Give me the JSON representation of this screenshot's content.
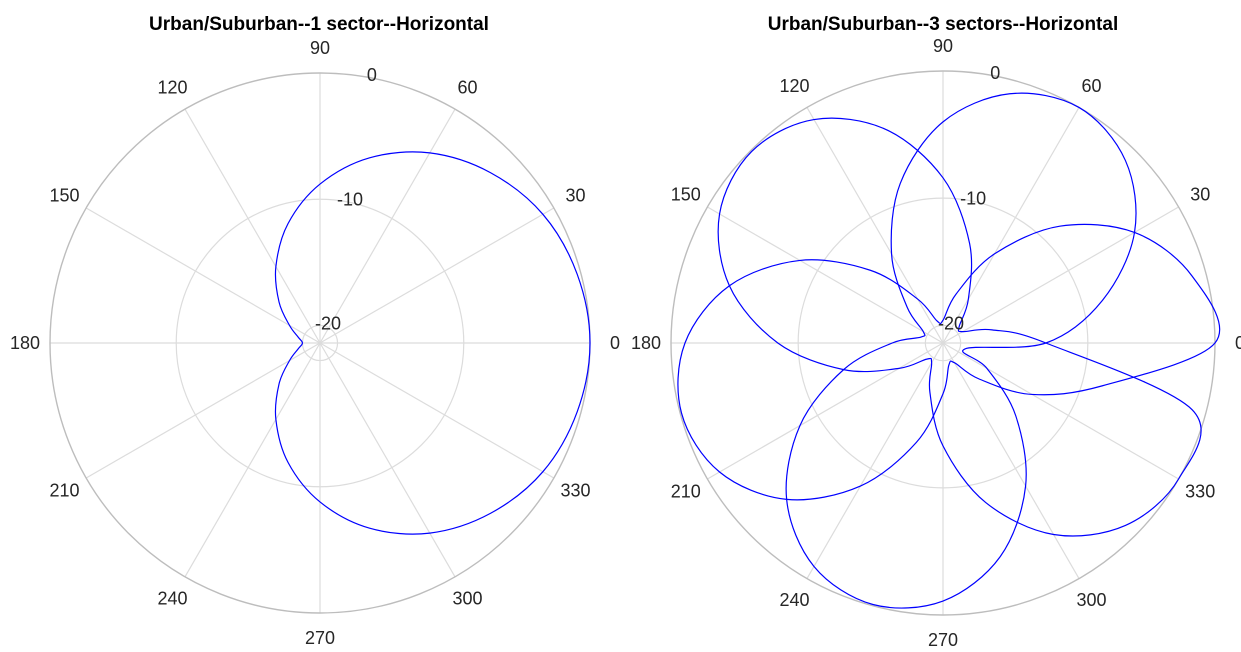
{
  "chart_data": [
    {
      "type": "polar-line",
      "title": "Urban/Suburban--1 sector--Horizontal",
      "theta_ticks": [
        "0",
        "30",
        "60",
        "90",
        "120",
        "150",
        "180",
        "210",
        "240",
        "270",
        "300",
        "330"
      ],
      "r_ticks": [
        "-20",
        "-10",
        "0"
      ],
      "rlim": [
        -20,
        0
      ],
      "grid": true,
      "series": [
        {
          "color": "#0000ff",
          "theta_deg": [
            0,
            15,
            30,
            45,
            60,
            75,
            90,
            105,
            120,
            135,
            150,
            165,
            180,
            195,
            210,
            225,
            240,
            255,
            270,
            285,
            300,
            315,
            330,
            345
          ],
          "r_db": [
            0.0,
            -0.3,
            -1.0,
            -2.3,
            -4.0,
            -6.2,
            -8.8,
            -11.6,
            -14.4,
            -16.8,
            -18.6,
            -19.6,
            -20.0,
            -19.6,
            -18.6,
            -16.8,
            -14.4,
            -11.6,
            -8.8,
            -6.2,
            -4.0,
            -2.3,
            -1.0,
            -0.3
          ]
        }
      ]
    },
    {
      "type": "polar-line",
      "title": "Urban/Suburban--3 sectors--Horizontal",
      "theta_ticks": [
        "0",
        "30",
        "60",
        "90",
        "120",
        "150",
        "180",
        "210",
        "240",
        "270",
        "300",
        "330"
      ],
      "r_ticks": [
        "-20",
        "-10",
        "0"
      ],
      "rlim": [
        -20,
        0
      ],
      "grid": true,
      "series": [
        {
          "color": "#0000ff",
          "theta_deg": [
            0,
            15,
            30,
            45,
            60,
            75,
            90,
            105,
            120,
            135,
            150,
            165,
            180,
            195,
            210,
            225,
            240,
            255,
            270,
            285,
            300,
            315,
            330,
            345
          ],
          "r_db": [
            0.0,
            -1.1,
            -4.0,
            -8.4,
            -13.3,
            -17.4,
            -19.6,
            -19.6,
            -17.4,
            -13.3,
            -8.4,
            -4.0,
            -1.1,
            -0.1,
            -1.1,
            -4.0,
            -8.4,
            -13.3,
            -17.4,
            -19.6,
            -19.6,
            -17.4,
            -13.3,
            -8.4
          ]
        },
        {
          "color": "#0000ff",
          "theta_deg": [
            0,
            15,
            30,
            45,
            60,
            75,
            90,
            105,
            120,
            135,
            150,
            165,
            180,
            195,
            210,
            225,
            240,
            255,
            270,
            285,
            300,
            315,
            330,
            345
          ],
          "r_db": [
            -13.3,
            -8.4,
            -4.0,
            -1.1,
            0.0,
            -1.1,
            -4.0,
            -8.4,
            -13.3,
            -17.4,
            -19.6,
            -19.6,
            -17.4,
            -13.3,
            -8.4,
            -4.0,
            -1.1,
            -0.1,
            -1.1,
            -4.0,
            -8.4,
            -13.3,
            -17.4,
            -19.6
          ]
        },
        {
          "color": "#0000ff",
          "theta_deg": [
            0,
            15,
            30,
            45,
            60,
            75,
            90,
            105,
            120,
            135,
            150,
            165,
            180,
            195,
            210,
            225,
            240,
            255,
            270,
            285,
            300,
            315,
            330,
            345
          ],
          "r_db": [
            -13.3,
            -17.4,
            -19.6,
            -19.6,
            -17.4,
            -13.3,
            -8.4,
            -4.0,
            -1.1,
            -0.1,
            -1.1,
            -4.0,
            -8.4,
            -13.3,
            -17.4,
            -19.6,
            -19.6,
            -17.4,
            -13.3,
            -8.4,
            -4.0,
            -1.1,
            0.0,
            -1.1
          ]
        }
      ]
    }
  ]
}
